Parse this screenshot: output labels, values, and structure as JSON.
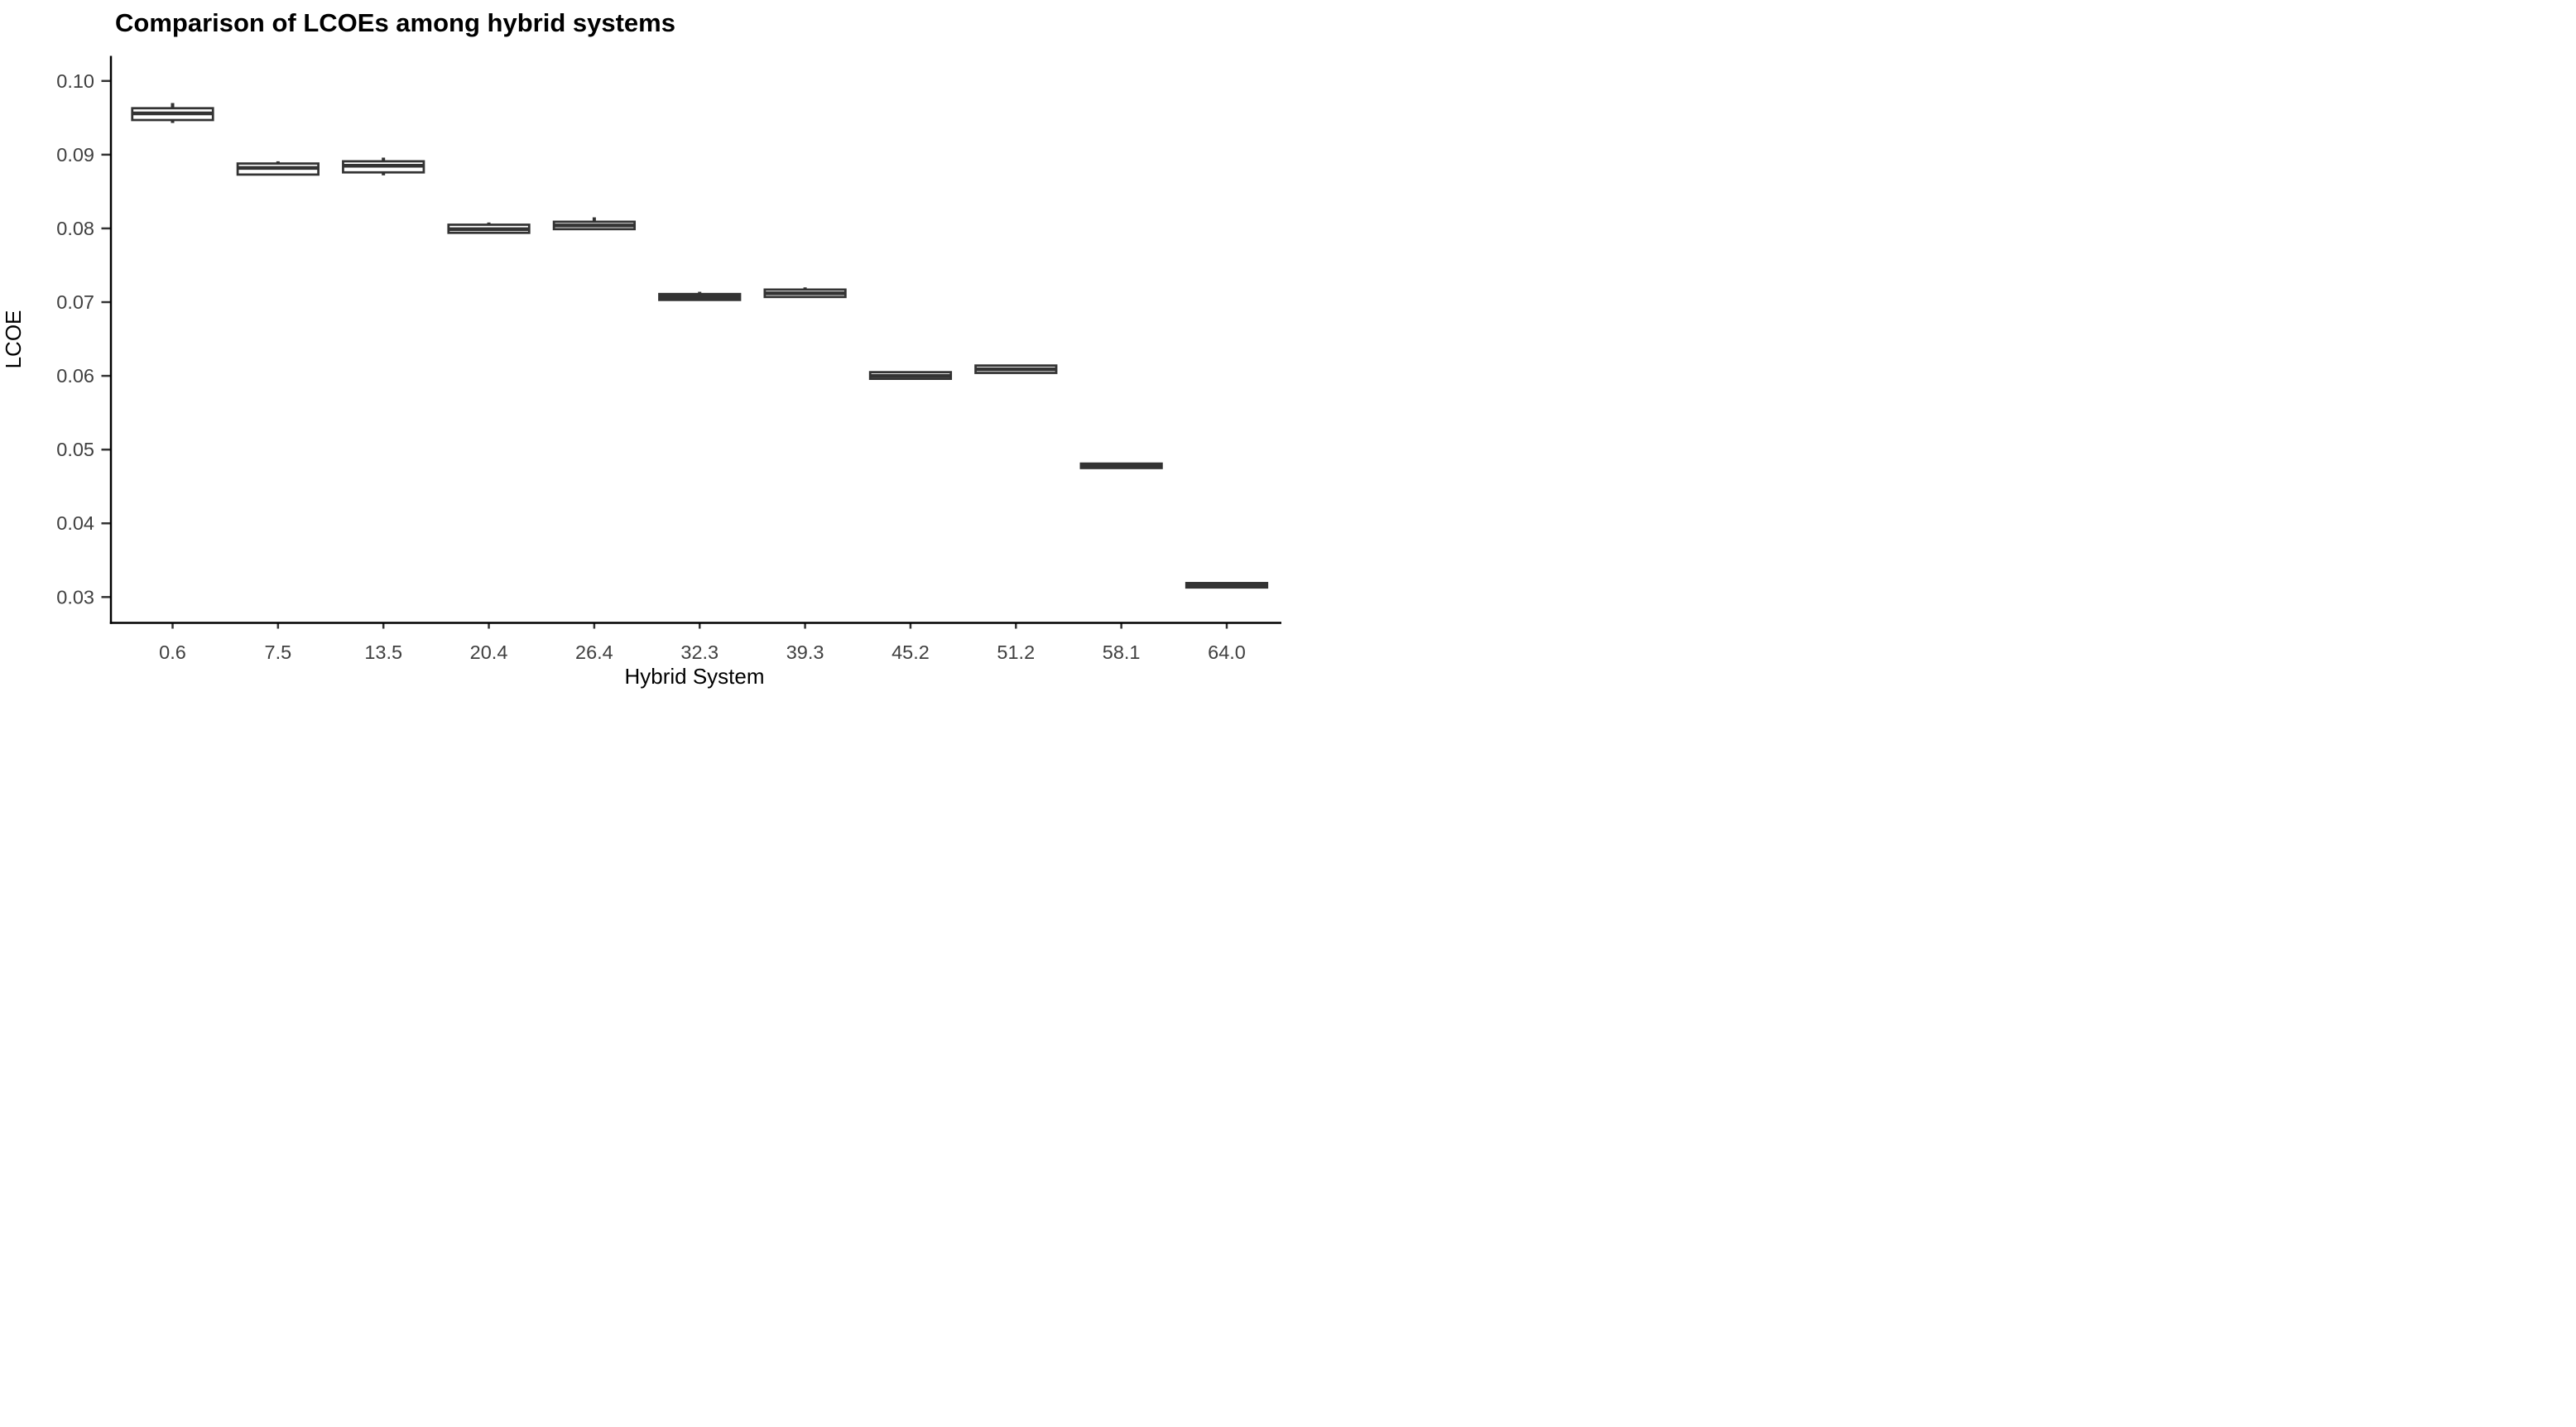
{
  "chart": {
    "title": "Comparison of LCOEs among hybrid systems",
    "xlabel": "Hybrid System",
    "ylabel": "LCOE"
  },
  "chart_data": {
    "type": "boxplot",
    "title": "Comparison of LCOEs among hybrid systems",
    "xlabel": "Hybrid System",
    "ylabel": "LCOE",
    "categories": [
      "0.6",
      "7.5",
      "13.5",
      "20.4",
      "26.4",
      "32.3",
      "39.3",
      "45.2",
      "51.2",
      "58.1",
      "64.0"
    ],
    "y_ticks": [
      {
        "value": 0.1,
        "label": "0.10"
      },
      {
        "value": 0.09,
        "label": "0.09"
      },
      {
        "value": 0.08,
        "label": "0.08"
      },
      {
        "value": 0.07,
        "label": "0.07"
      },
      {
        "value": 0.06,
        "label": "0.06"
      },
      {
        "value": 0.05,
        "label": "0.05"
      },
      {
        "value": 0.04,
        "label": "0.04"
      },
      {
        "value": 0.03,
        "label": "0.03"
      }
    ],
    "ylim": [
      0.0265,
      0.1034
    ],
    "grid": false,
    "legend": "none",
    "background_color": "#ffffff",
    "box_stroke_color": "#333333",
    "box_fill_color": "#ffffff",
    "axis_line_color": "#000000",
    "tick_label_color": "#404040",
    "series": [
      {
        "category": "0.6",
        "min": 0.0943,
        "q1": 0.0947,
        "median": 0.0956,
        "q3": 0.0963,
        "max": 0.097
      },
      {
        "category": "7.5",
        "min": 0.0873,
        "q1": 0.0873,
        "median": 0.0882,
        "q3": 0.0888,
        "max": 0.0891
      },
      {
        "category": "13.5",
        "min": 0.0872,
        "q1": 0.0876,
        "median": 0.0885,
        "q3": 0.0891,
        "max": 0.0896
      },
      {
        "category": "20.4",
        "min": 0.0794,
        "q1": 0.0794,
        "median": 0.0799,
        "q3": 0.0805,
        "max": 0.0808
      },
      {
        "category": "26.4",
        "min": 0.0799,
        "q1": 0.0799,
        "median": 0.0804,
        "q3": 0.0809,
        "max": 0.0815
      },
      {
        "category": "32.3",
        "min": 0.0703,
        "q1": 0.0703,
        "median": 0.0707,
        "q3": 0.0711,
        "max": 0.0714
      },
      {
        "category": "39.3",
        "min": 0.0707,
        "q1": 0.0707,
        "median": 0.0712,
        "q3": 0.0717,
        "max": 0.072
      },
      {
        "category": "45.2",
        "min": 0.0596,
        "q1": 0.0596,
        "median": 0.06,
        "q3": 0.0605,
        "max": 0.0605
      },
      {
        "category": "51.2",
        "min": 0.0604,
        "q1": 0.0604,
        "median": 0.0609,
        "q3": 0.0614,
        "max": 0.0614
      },
      {
        "category": "58.1",
        "min": 0.0475,
        "q1": 0.0475,
        "median": 0.0478,
        "q3": 0.0481,
        "max": 0.0481
      },
      {
        "category": "64.0",
        "min": 0.0313,
        "q1": 0.0313,
        "median": 0.0316,
        "q3": 0.0319,
        "max": 0.0319
      }
    ]
  }
}
